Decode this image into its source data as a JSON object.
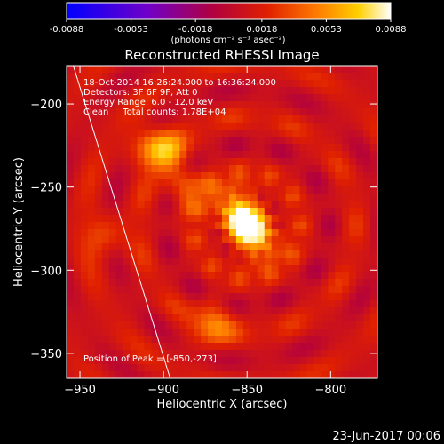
{
  "chart_data": {
    "type": "heatmap",
    "title": "Reconstructed RHESSI Image",
    "xlabel": "Heliocentric X (arcsec)",
    "ylabel": "Heliocentric Y (arcsec)",
    "xlim": [
      -958,
      -772
    ],
    "ylim": [
      -365,
      -177
    ],
    "xticks": [
      -950,
      -900,
      -850,
      -800
    ],
    "yticks": [
      -200,
      -250,
      -300,
      -350
    ],
    "colorbar": {
      "min": -0.0088,
      "max": 0.0088,
      "ticks": [
        "-0.0088",
        "-0.0053",
        "-0.0018",
        "0.0018",
        "0.0053",
        "0.0088"
      ],
      "units_label": "(photons cm⁻² s⁻¹ asec⁻²)",
      "colormap": "blue-purple-red-yellow-white"
    },
    "info_lines": [
      "18-Oct-2014 16:26:24.000 to 16:36:24.000",
      "Detectors: 3F 6F 9F, Att 0",
      "Energy Range: 6.0 - 12.0 keV",
      "Clean     Total counts: 1.78E+04"
    ],
    "peak_label": "Position of Peak = [-850,-273]",
    "peak_position": [
      -850,
      -273
    ],
    "limb_line": [
      [
        -954,
        -177
      ],
      [
        -896,
        -365
      ]
    ],
    "sources": [
      {
        "x": -850,
        "y": -273,
        "intensity": 1.0
      },
      {
        "x": -857,
        "y": -262,
        "intensity": 0.65
      },
      {
        "x": -842,
        "y": -284,
        "intensity": 0.55
      }
    ],
    "secondary_sources": [
      {
        "x": -906,
        "y": -225,
        "intensity": 0.5
      },
      {
        "x": -897,
        "y": -231,
        "intensity": 0.4
      },
      {
        "x": -870,
        "y": -333,
        "intensity": 0.45
      },
      {
        "x": -885,
        "y": -252,
        "intensity": 0.35
      },
      {
        "x": -935,
        "y": -280,
        "intensity": 0.3
      }
    ]
  },
  "footer": {
    "date": "23-Jun-2017 00:06"
  }
}
